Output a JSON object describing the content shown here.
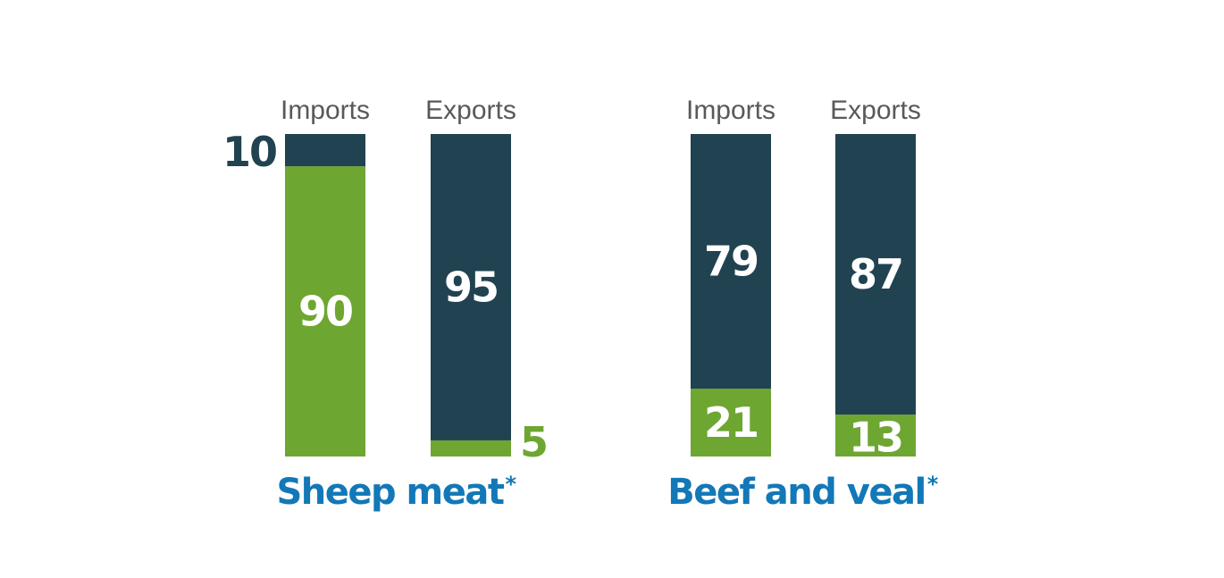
{
  "colors": {
    "dark": "#214251",
    "green": "#6ea632",
    "title": "#1278b8",
    "header": "#58595b",
    "label_light": "#ffffff"
  },
  "chart_data": [
    {
      "type": "bar",
      "stacked": true,
      "title": "Sheep meat",
      "title_marker": "*",
      "categories": [
        "Imports",
        "Exports"
      ],
      "series": [
        {
          "color": "green",
          "values": [
            90,
            5
          ]
        },
        {
          "color": "dark",
          "values": [
            10,
            95
          ]
        }
      ],
      "ylim": [
        0,
        100
      ],
      "grid": false
    },
    {
      "type": "bar",
      "stacked": true,
      "title": "Beef and veal",
      "title_marker": "*",
      "categories": [
        "Imports",
        "Exports"
      ],
      "series": [
        {
          "color": "green",
          "values": [
            21,
            13
          ]
        },
        {
          "color": "dark",
          "values": [
            79,
            87
          ]
        }
      ],
      "ylim": [
        0,
        100
      ],
      "grid": false
    }
  ]
}
